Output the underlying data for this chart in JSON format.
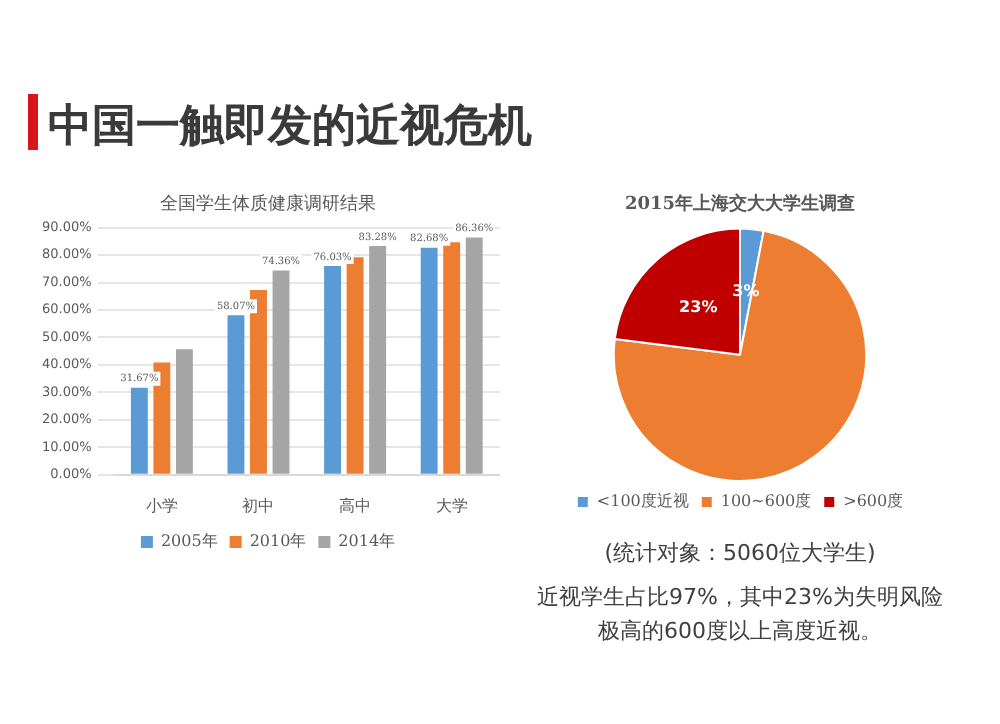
{
  "chart_data": [
    {
      "type": "other",
      "title": "中国一触即发的近视危机"
    },
    {
      "type": "bar",
      "title": "全国学生体质健康调研结果",
      "categories": [
        "小学",
        "初中",
        "高中",
        "大学"
      ],
      "series": [
        {
          "name": "2005年",
          "color": "#5b9bd5",
          "values": [
            31.67,
            58.07,
            76.03,
            82.68
          ],
          "value_labels": [
            "31.67%",
            "58.07%",
            "76.03%",
            "82.68%"
          ]
        },
        {
          "name": "2010年",
          "color": "#ed7d31",
          "values": [
            40.9,
            67.3,
            79.2,
            84.7
          ]
        },
        {
          "name": "2014年",
          "color": "#a5a5a5",
          "values": [
            45.7,
            74.36,
            83.28,
            86.36
          ],
          "value_labels": [
            null,
            "74.36%",
            "83.28%",
            "86.36%"
          ]
        }
      ],
      "ylim": [
        0,
        90
      ],
      "yticks": [
        {
          "value": 0,
          "label": "0.00%"
        },
        {
          "value": 10,
          "label": "10.00%"
        },
        {
          "value": 20,
          "label": "20.00%"
        },
        {
          "value": 30,
          "label": "30.00%"
        },
        {
          "value": 40,
          "label": "40.00%"
        },
        {
          "value": 50,
          "label": "50.00%"
        },
        {
          "value": 60,
          "label": "60.00%"
        },
        {
          "value": 70,
          "label": "70.00%"
        },
        {
          "value": 80,
          "label": "80.00%"
        },
        {
          "value": 90,
          "label": "90.00%"
        }
      ],
      "grid": "y",
      "legend": "bottom"
    },
    {
      "type": "pie",
      "title": "2015年上海交大大学生调查",
      "subtitle": "(统计对象：5060位大学生)",
      "categories": [
        "<100度近视",
        "100~600度",
        ">600度"
      ],
      "values": [
        3,
        74,
        23
      ],
      "colors": [
        "#5b9bd5",
        "#ed7d31",
        "#c00000"
      ],
      "value_labels": [
        "3%",
        null,
        "23%"
      ],
      "legend": "bottom",
      "annotations": [
        "近视学生占比97%，其中23%为失明风险极高的600度以上高度近视。"
      ]
    }
  ]
}
